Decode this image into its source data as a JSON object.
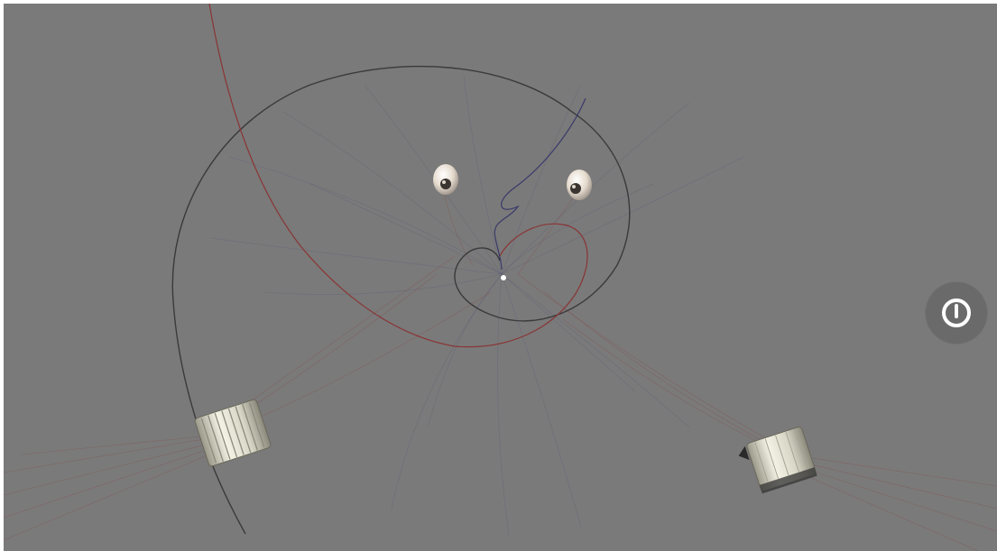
{
  "scene": {
    "background_color": "#7a7a7a",
    "field_line_red": "#8a4a4a",
    "field_line_blue": "#5a5a7a",
    "trajectory_dark": "#3a3a3a",
    "trajectory_red": "#8a3434",
    "trajectory_blue": "#3a3a6a"
  },
  "controls": {
    "power_icon": "power-icon",
    "power_button_color": "#6a6a6a"
  },
  "objects": {
    "magnets": [
      "sphere-magnet",
      "sphere-magnet"
    ],
    "coils": [
      "coil-magnet",
      "coil-magnet"
    ],
    "center_particle": "white-dot"
  }
}
